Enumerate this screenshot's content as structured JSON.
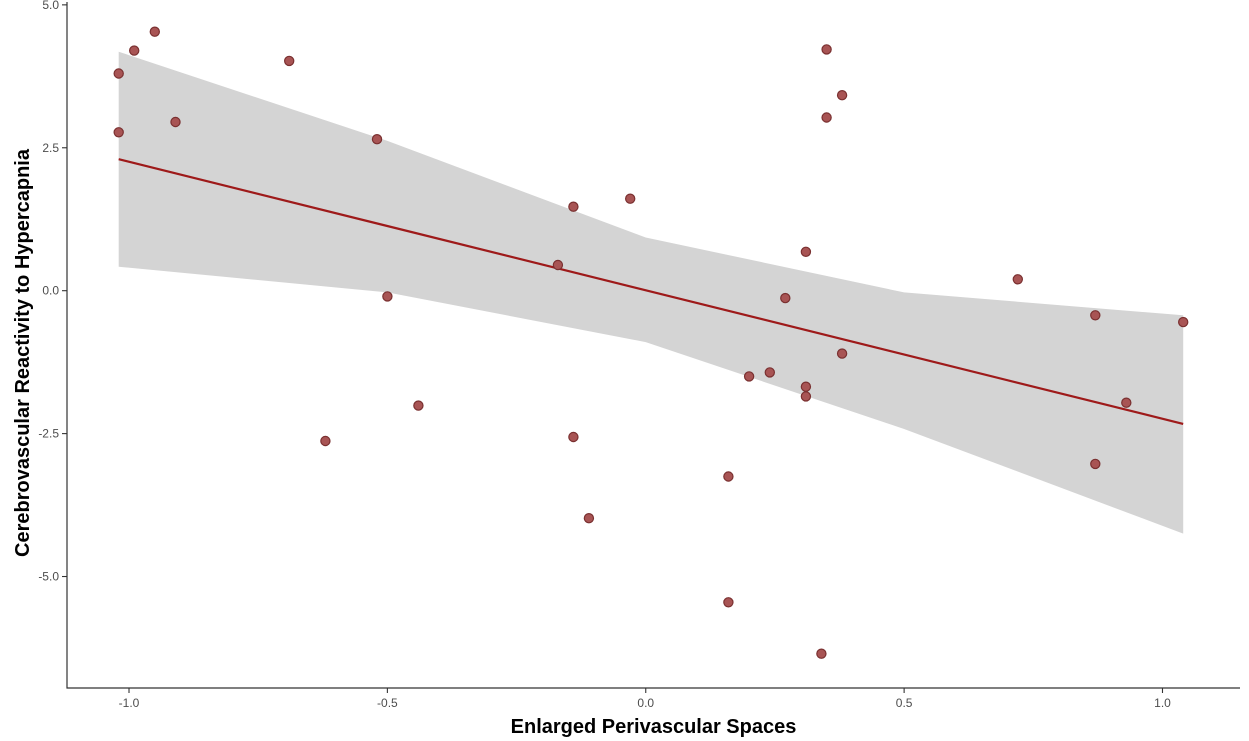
{
  "chart_data": {
    "type": "scatter",
    "xlabel": "Enlarged Perivascular Spaces",
    "ylabel": "Cerebrovascular Reactivity to Hypercapnia",
    "xlim": [
      -1.12,
      1.15
    ],
    "ylim": [
      -6.95,
      5.05
    ],
    "x_ticks": [
      -1.0,
      -0.5,
      0.0,
      0.5,
      1.0
    ],
    "x_tick_labels": [
      "-1.0",
      "-0.5",
      "0.0",
      "0.5",
      "1.0"
    ],
    "y_ticks": [
      -5.0,
      -2.5,
      0.0,
      2.5,
      5.0
    ],
    "y_tick_labels": [
      "-5.0",
      "-2.5",
      "0.0",
      "2.5",
      "5.0"
    ],
    "grid": false,
    "legend": "none",
    "colors": {
      "points": "#a85454",
      "point_outline": "#7a3030",
      "fit_line": "#9e1a1a",
      "confidence_band": "#d4d4d4",
      "axis": "#333333"
    },
    "points": [
      {
        "x": -1.02,
        "y": 3.8
      },
      {
        "x": -1.02,
        "y": 2.77
      },
      {
        "x": -0.99,
        "y": 4.2
      },
      {
        "x": -0.95,
        "y": 4.53
      },
      {
        "x": -0.91,
        "y": 2.95
      },
      {
        "x": -0.69,
        "y": 4.02
      },
      {
        "x": -0.62,
        "y": -2.63
      },
      {
        "x": -0.52,
        "y": 2.65
      },
      {
        "x": -0.5,
        "y": -0.1
      },
      {
        "x": -0.44,
        "y": -2.01
      },
      {
        "x": -0.17,
        "y": 0.45
      },
      {
        "x": -0.14,
        "y": 1.47
      },
      {
        "x": -0.14,
        "y": -2.56
      },
      {
        "x": -0.11,
        "y": -3.98
      },
      {
        "x": -0.03,
        "y": 1.61
      },
      {
        "x": 0.16,
        "y": -3.25
      },
      {
        "x": 0.16,
        "y": -5.45
      },
      {
        "x": 0.2,
        "y": -1.5
      },
      {
        "x": 0.24,
        "y": -1.43
      },
      {
        "x": 0.27,
        "y": -0.13
      },
      {
        "x": 0.31,
        "y": 0.68
      },
      {
        "x": 0.31,
        "y": -1.68
      },
      {
        "x": 0.31,
        "y": -1.85
      },
      {
        "x": 0.34,
        "y": -6.35
      },
      {
        "x": 0.35,
        "y": 4.22
      },
      {
        "x": 0.35,
        "y": 3.03
      },
      {
        "x": 0.38,
        "y": 3.42
      },
      {
        "x": 0.38,
        "y": -1.1
      },
      {
        "x": 0.72,
        "y": 0.2
      },
      {
        "x": 0.87,
        "y": -0.43
      },
      {
        "x": 0.87,
        "y": -3.03
      },
      {
        "x": 0.93,
        "y": -1.96
      },
      {
        "x": 1.04,
        "y": -0.55
      }
    ],
    "fit_line": {
      "x": [
        -1.02,
        1.04
      ],
      "y": [
        2.3,
        -2.33
      ]
    },
    "confidence_band": {
      "x": [
        -1.02,
        -0.5,
        0.0,
        0.5,
        1.04
      ],
      "upper": [
        4.18,
        2.62,
        0.93,
        -0.03,
        -0.43
      ],
      "lower": [
        0.42,
        -0.03,
        -0.9,
        -2.42,
        -4.25
      ]
    }
  }
}
